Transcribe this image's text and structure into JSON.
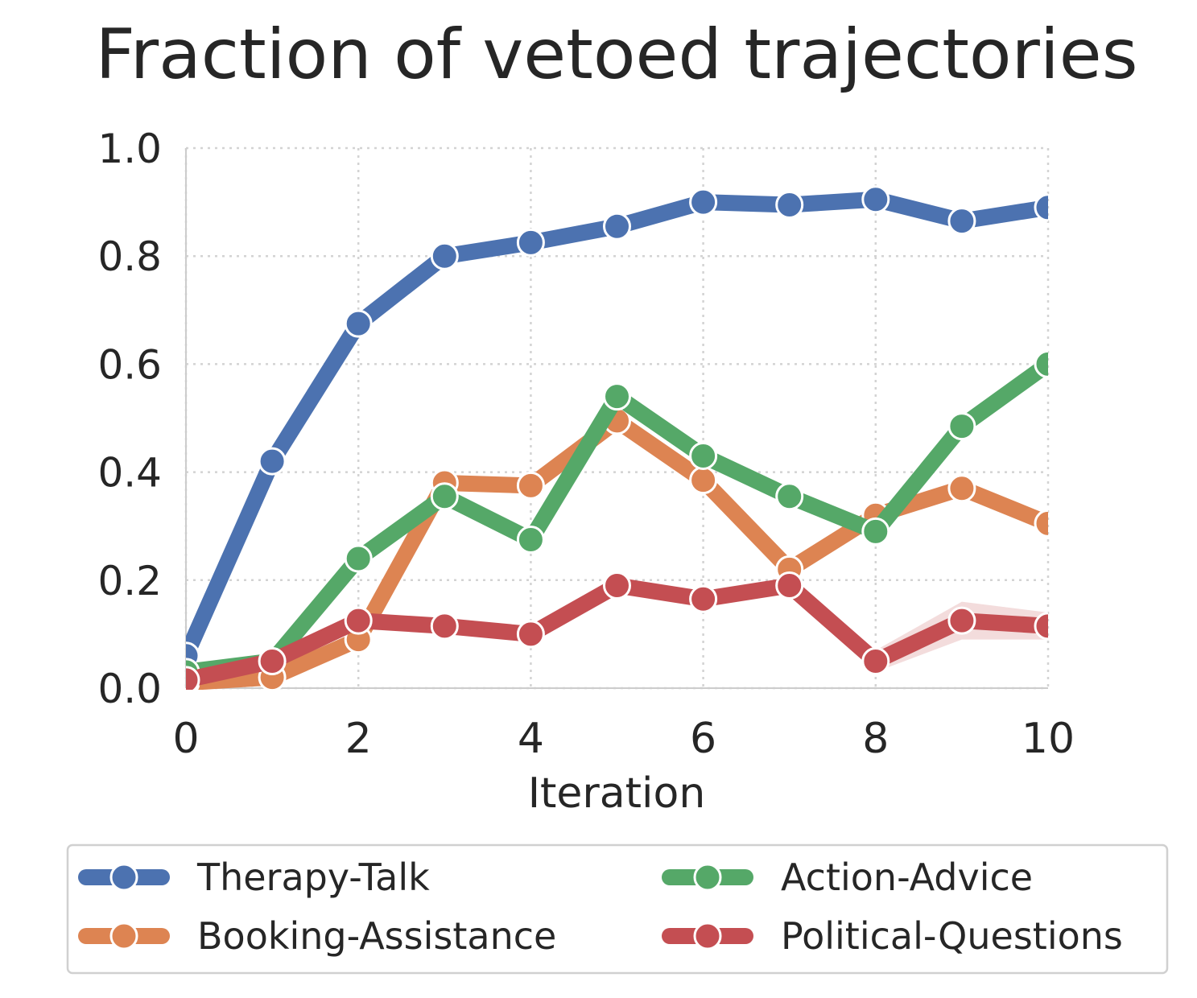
{
  "chart_data": {
    "type": "line",
    "title": "Fraction of vetoed trajectories",
    "xlabel": "Iteration",
    "ylabel": "",
    "xlim": [
      0,
      10
    ],
    "ylim": [
      0,
      1.0
    ],
    "x": [
      0,
      1,
      2,
      3,
      4,
      5,
      6,
      7,
      8,
      9,
      10
    ],
    "xticks": [
      0,
      2,
      4,
      6,
      8,
      10
    ],
    "yticks": [
      "0.0",
      "0.2",
      "0.4",
      "0.6",
      "0.8",
      "1.0"
    ],
    "grid": true,
    "legend_position": "bottom",
    "series": [
      {
        "name": "Therapy-Talk",
        "color": "#4c72b0",
        "values": [
          0.06,
          0.42,
          0.675,
          0.8,
          0.825,
          0.855,
          0.9,
          0.895,
          0.905,
          0.865,
          0.89
        ],
        "band": [
          0.005,
          0.005,
          0.005,
          0.005,
          0.005,
          0.005,
          0.005,
          0.005,
          0.008,
          0.005,
          0.008
        ]
      },
      {
        "name": "Booking-Assistance",
        "color": "#dd8452",
        "values": [
          0.01,
          0.02,
          0.09,
          0.38,
          0.375,
          0.495,
          0.385,
          0.22,
          0.32,
          0.37,
          0.305
        ],
        "band": [
          0.005,
          0.005,
          0.005,
          0.005,
          0.005,
          0.005,
          0.005,
          0.005,
          0.005,
          0.005,
          0.005
        ]
      },
      {
        "name": "Action-Advice",
        "color": "#55a868",
        "values": [
          0.03,
          0.05,
          0.24,
          0.355,
          0.275,
          0.54,
          0.43,
          0.355,
          0.29,
          0.485,
          0.6
        ],
        "band": [
          0.005,
          0.005,
          0.005,
          0.005,
          0.005,
          0.005,
          0.005,
          0.005,
          0.005,
          0.005,
          0.005
        ]
      },
      {
        "name": "Political-Questions",
        "color": "#c44e52",
        "values": [
          0.015,
          0.05,
          0.125,
          0.115,
          0.1,
          0.19,
          0.165,
          0.19,
          0.05,
          0.125,
          0.115
        ],
        "band": [
          0.005,
          0.005,
          0.005,
          0.005,
          0.005,
          0.01,
          0.01,
          0.005,
          0.02,
          0.035,
          0.025
        ]
      }
    ]
  }
}
